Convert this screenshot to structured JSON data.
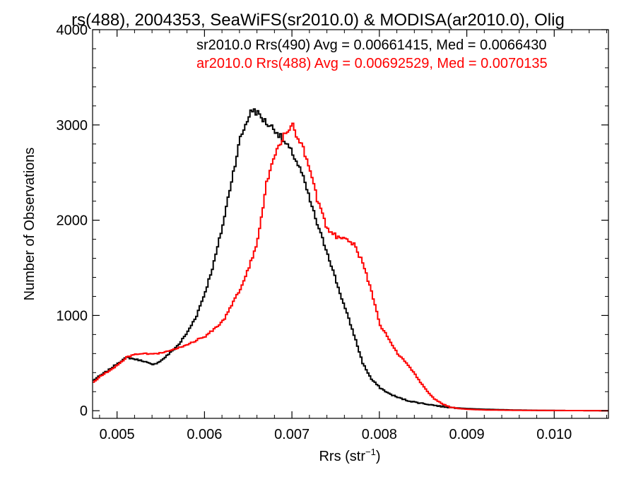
{
  "chart_data": {
    "type": "line",
    "title": "rs(488), 2004353, SeaWiFS(sr2010.0) & MODISA(ar2010.0), Olig",
    "xlabel": "Rrs (str",
    "xlabel_sup": "−1",
    "xlabel_close": ")",
    "ylabel": "Number of Observations",
    "xlim": [
      0.00472,
      0.01062
    ],
    "ylim": [
      -80,
      4000
    ],
    "x_ticks": [
      0.005,
      0.006,
      0.007,
      0.008,
      0.009,
      0.01
    ],
    "x_tick_labels": [
      "0.005",
      "0.006",
      "0.007",
      "0.008",
      "0.009",
      "0.010"
    ],
    "y_ticks": [
      0,
      1000,
      2000,
      3000,
      4000
    ],
    "y_tick_labels": [
      "0",
      "1000",
      "2000",
      "3000",
      "4000"
    ],
    "step_style": "histogram",
    "grid": false,
    "legend_position": "top-right",
    "legend": [
      {
        "label": "sr2010.0 Rrs(490) Avg = 0.00661415, Med = 0.0066430",
        "color": "#000000"
      },
      {
        "label": "ar2010.0 Rrs(488) Avg = 0.00692529, Med = 0.0070135",
        "color": "#ff0000"
      }
    ],
    "series": [
      {
        "color": "#000000",
        "points": [
          [
            0.00472,
            320
          ],
          [
            0.0048,
            370
          ],
          [
            0.0049,
            430
          ],
          [
            0.005,
            500
          ],
          [
            0.0051,
            560
          ],
          [
            0.0052,
            540
          ],
          [
            0.0053,
            520
          ],
          [
            0.0054,
            480
          ],
          [
            0.0055,
            530
          ],
          [
            0.0056,
            610
          ],
          [
            0.0057,
            700
          ],
          [
            0.0058,
            830
          ],
          [
            0.0059,
            1000
          ],
          [
            0.006,
            1250
          ],
          [
            0.0061,
            1560
          ],
          [
            0.0062,
            1950
          ],
          [
            0.0063,
            2420
          ],
          [
            0.0064,
            2860
          ],
          [
            0.0065,
            3100
          ],
          [
            0.00655,
            3170
          ],
          [
            0.0066,
            3120
          ],
          [
            0.0067,
            3020
          ],
          [
            0.0068,
            2950
          ],
          [
            0.0069,
            2820
          ],
          [
            0.007,
            2700
          ],
          [
            0.0071,
            2500
          ],
          [
            0.0072,
            2200
          ],
          [
            0.0073,
            1900
          ],
          [
            0.0074,
            1650
          ],
          [
            0.0075,
            1350
          ],
          [
            0.0076,
            1070
          ],
          [
            0.0077,
            800
          ],
          [
            0.0078,
            500
          ],
          [
            0.0079,
            330
          ],
          [
            0.008,
            240
          ],
          [
            0.0081,
            180
          ],
          [
            0.0082,
            140
          ],
          [
            0.0083,
            110
          ],
          [
            0.0084,
            90
          ],
          [
            0.0085,
            75
          ],
          [
            0.0086,
            60
          ],
          [
            0.0087,
            45
          ],
          [
            0.0088,
            35
          ],
          [
            0.0089,
            28
          ],
          [
            0.009,
            22
          ],
          [
            0.0092,
            15
          ],
          [
            0.0095,
            8
          ],
          [
            0.0098,
            4
          ],
          [
            0.0101,
            2
          ],
          [
            0.0104,
            1
          ],
          [
            0.01062,
            0
          ]
        ]
      },
      {
        "color": "#ff0000",
        "points": [
          [
            0.00472,
            300
          ],
          [
            0.0048,
            360
          ],
          [
            0.0049,
            420
          ],
          [
            0.005,
            480
          ],
          [
            0.0051,
            560
          ],
          [
            0.0052,
            590
          ],
          [
            0.0053,
            600
          ],
          [
            0.0054,
            590
          ],
          [
            0.0055,
            610
          ],
          [
            0.0056,
            630
          ],
          [
            0.0057,
            660
          ],
          [
            0.0058,
            700
          ],
          [
            0.0059,
            740
          ],
          [
            0.006,
            780
          ],
          [
            0.0061,
            860
          ],
          [
            0.0062,
            940
          ],
          [
            0.0063,
            1100
          ],
          [
            0.0064,
            1280
          ],
          [
            0.0065,
            1500
          ],
          [
            0.0066,
            1800
          ],
          [
            0.0067,
            2380
          ],
          [
            0.0068,
            2700
          ],
          [
            0.0069,
            2880
          ],
          [
            0.007,
            2980
          ],
          [
            0.0071,
            2800
          ],
          [
            0.0072,
            2500
          ],
          [
            0.0073,
            2150
          ],
          [
            0.0074,
            1900
          ],
          [
            0.0075,
            1830
          ],
          [
            0.0076,
            1820
          ],
          [
            0.0077,
            1750
          ],
          [
            0.0078,
            1550
          ],
          [
            0.0079,
            1250
          ],
          [
            0.008,
            900
          ],
          [
            0.0081,
            750
          ],
          [
            0.0082,
            600
          ],
          [
            0.0083,
            500
          ],
          [
            0.0084,
            380
          ],
          [
            0.0085,
            250
          ],
          [
            0.0086,
            140
          ],
          [
            0.0087,
            80
          ],
          [
            0.0088,
            40
          ],
          [
            0.0089,
            22
          ],
          [
            0.009,
            15
          ],
          [
            0.0092,
            8
          ],
          [
            0.0095,
            5
          ],
          [
            0.0098,
            3
          ],
          [
            0.0101,
            2
          ],
          [
            0.0104,
            1
          ],
          [
            0.01062,
            0
          ]
        ]
      }
    ]
  }
}
